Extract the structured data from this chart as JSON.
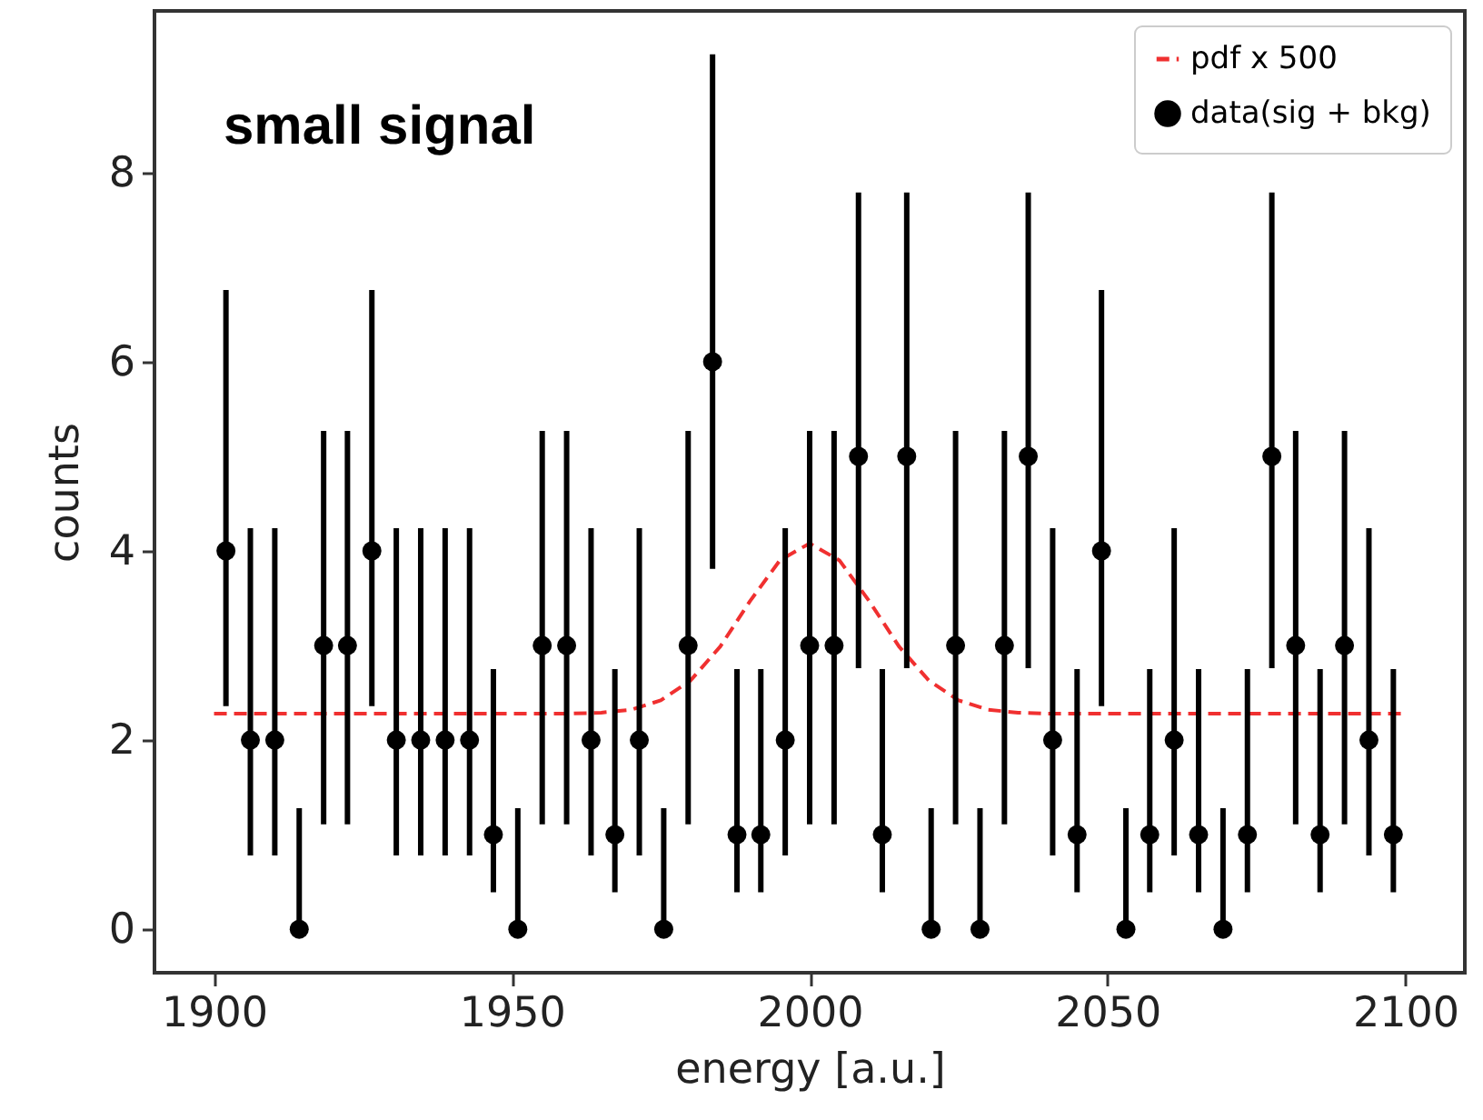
{
  "chart_data": {
    "type": "scatter",
    "xlabel": "energy [a.u.]",
    "ylabel": "counts",
    "annotations": [
      "small signal"
    ],
    "xlim": [
      1890,
      2110
    ],
    "xticks": [
      1900,
      1950,
      2000,
      2050,
      2100
    ],
    "ylim": [
      -0.46,
      9.71
    ],
    "yticks": [
      0,
      2,
      4,
      6,
      8
    ],
    "grid": false,
    "legend": "top right",
    "series": [
      {
        "name": "pdf x 500",
        "type": "line",
        "color": "#f03030",
        "line_style": "dashed",
        "marker": "none",
        "x": [
          1900,
          1950,
          1960,
          1965,
          1970,
          1975,
          1980,
          1985,
          1990,
          1995,
          2000,
          2005,
          2010,
          2015,
          2020,
          2025,
          2030,
          2035,
          2040,
          2050,
          2100
        ],
        "values": [
          2.28,
          2.28,
          2.28,
          2.29,
          2.32,
          2.42,
          2.63,
          2.99,
          3.47,
          3.9,
          4.08,
          3.9,
          3.47,
          2.99,
          2.63,
          2.42,
          2.32,
          2.29,
          2.28,
          2.28,
          2.28
        ]
      },
      {
        "name": "data(sig + bkg)",
        "color": "#000000",
        "marker": "circle",
        "x": [
          1902,
          1906.1,
          1910.2,
          1914.3,
          1918.4,
          1922.4,
          1926.5,
          1930.6,
          1934.7,
          1938.8,
          1942.9,
          1946.9,
          1951,
          1955.1,
          1959.2,
          1963.3,
          1967.3,
          1971.4,
          1975.5,
          1979.6,
          1983.7,
          1987.8,
          1991.8,
          1995.9,
          2000,
          2004.1,
          2008.2,
          2012.2,
          2016.3,
          2020.4,
          2024.5,
          2028.6,
          2032.7,
          2036.7,
          2040.8,
          2044.9,
          2049,
          2053.1,
          2057.1,
          2061.2,
          2065.3,
          2069.4,
          2073.5,
          2077.6,
          2081.6,
          2085.7,
          2089.8,
          2093.9,
          2098
        ],
        "values": [
          4,
          2,
          2,
          0,
          3,
          3,
          4,
          2,
          2,
          2,
          2,
          1,
          0,
          3,
          3,
          2,
          1,
          2,
          0,
          3,
          6,
          1,
          1,
          2,
          3,
          3,
          5,
          1,
          5,
          0,
          3,
          0,
          3,
          5,
          2,
          1,
          4,
          0,
          1,
          2,
          1,
          0,
          1,
          5,
          3,
          1,
          3,
          2,
          1
        ],
        "errors": [
          [
            2.36,
            6.76
          ],
          [
            0.78,
            4.24
          ],
          [
            0.78,
            4.24
          ],
          [
            0,
            1.28
          ],
          [
            1.11,
            5.27
          ],
          [
            1.11,
            5.27
          ],
          [
            2.36,
            6.76
          ],
          [
            0.78,
            4.24
          ],
          [
            0.78,
            4.24
          ],
          [
            0.78,
            4.24
          ],
          [
            0.78,
            4.24
          ],
          [
            0.39,
            2.75
          ],
          [
            0,
            1.28
          ],
          [
            1.11,
            5.27
          ],
          [
            1.11,
            5.27
          ],
          [
            0.78,
            4.24
          ],
          [
            0.39,
            2.75
          ],
          [
            0.78,
            4.24
          ],
          [
            0,
            1.28
          ],
          [
            1.11,
            5.27
          ],
          [
            3.81,
            9.25
          ],
          [
            0.39,
            2.75
          ],
          [
            0.39,
            2.75
          ],
          [
            0.78,
            4.24
          ],
          [
            1.11,
            5.27
          ],
          [
            1.11,
            5.27
          ],
          [
            2.76,
            7.79
          ],
          [
            0.39,
            2.75
          ],
          [
            2.76,
            7.79
          ],
          [
            0,
            1.28
          ],
          [
            1.11,
            5.27
          ],
          [
            0,
            1.28
          ],
          [
            1.11,
            5.27
          ],
          [
            2.76,
            7.79
          ],
          [
            0.78,
            4.24
          ],
          [
            0.39,
            2.75
          ],
          [
            2.36,
            6.76
          ],
          [
            0,
            1.28
          ],
          [
            0.39,
            2.75
          ],
          [
            0.78,
            4.24
          ],
          [
            0.39,
            2.75
          ],
          [
            0,
            1.28
          ],
          [
            0.39,
            2.75
          ],
          [
            2.76,
            7.79
          ],
          [
            1.11,
            5.27
          ],
          [
            0.39,
            2.75
          ],
          [
            1.11,
            5.27
          ],
          [
            0.78,
            4.24
          ],
          [
            0.39,
            2.75
          ]
        ]
      }
    ]
  }
}
